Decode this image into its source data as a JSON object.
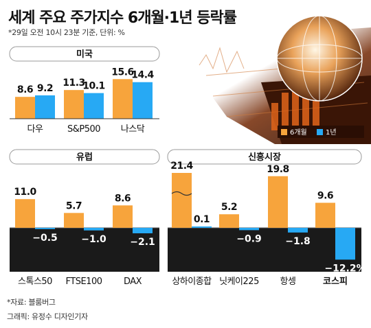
{
  "title": "세계 주요 주가지수 6개월·1년 등락률",
  "subtitle": "*29일 오전 10시 23분 기준, 단위: %",
  "source": "*자료: 블룸버그",
  "credit": "그래픽: 유정수 디자인기자",
  "colors": {
    "six_month": "#F7A43C",
    "one_year": "#27A9F4",
    "dark_bg": "#1a1a1a"
  },
  "chart_data": [
    {
      "type": "bar",
      "title": "미국",
      "categories": [
        "다우",
        "S&P500",
        "나스닥"
      ],
      "series": [
        {
          "name": "6개월",
          "values": [
            8.6,
            11.3,
            15.6
          ]
        },
        {
          "name": "1년",
          "values": [
            9.2,
            10.1,
            14.4
          ]
        }
      ],
      "legend": "bottom-right"
    },
    {
      "type": "bar",
      "title": "유럽",
      "categories": [
        "스톡스50",
        "FTSE100",
        "DAX"
      ],
      "series": [
        {
          "name": "6개월",
          "values": [
            11.0,
            5.7,
            8.6
          ]
        },
        {
          "name": "1년",
          "values": [
            -0.5,
            -1.0,
            -2.1
          ]
        }
      ]
    },
    {
      "type": "bar",
      "title": "신흥시장",
      "categories": [
        "상하이종합",
        "닛케이225",
        "항셍",
        "코스피"
      ],
      "series": [
        {
          "name": "6개월",
          "values": [
            21.4,
            5.2,
            19.8,
            9.6
          ]
        },
        {
          "name": "1년",
          "values": [
            0.1,
            -0.9,
            -1.8,
            -12.2
          ]
        }
      ],
      "value_labels": {
        "6개월": [
          "21.4",
          "5.2",
          "19.8",
          "9.6"
        ],
        "1년": [
          "0.1",
          "−0.9",
          "−1.8",
          "−12.2%"
        ]
      }
    }
  ],
  "legend": {
    "six_month": "6개월",
    "one_year": "1년"
  }
}
